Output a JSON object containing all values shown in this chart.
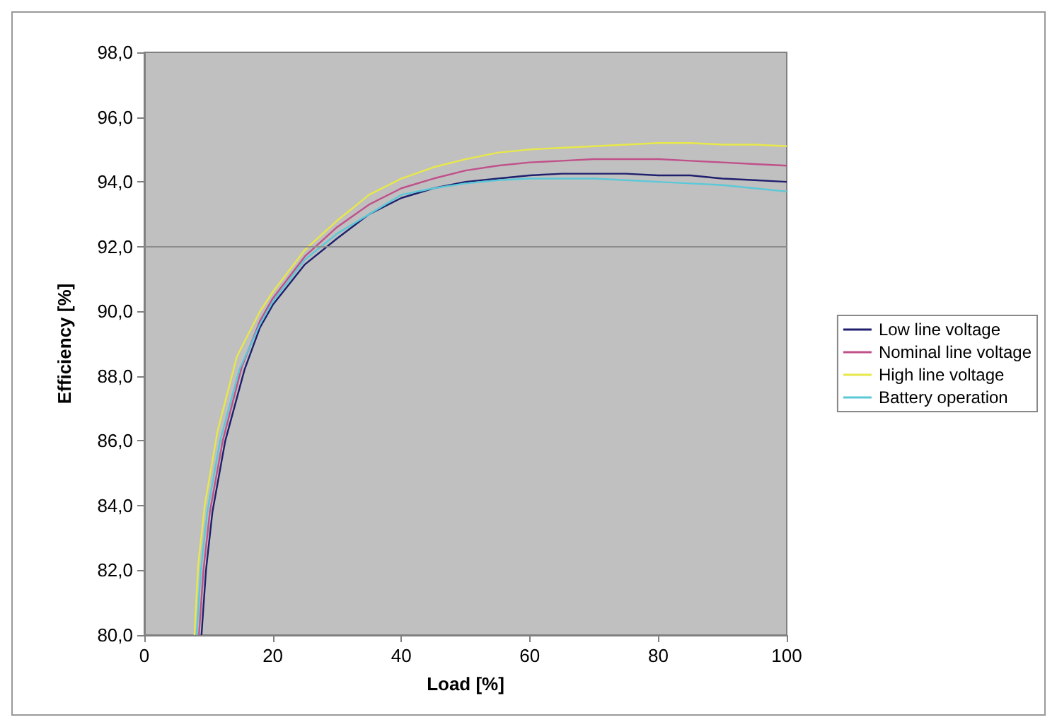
{
  "chart_data": {
    "type": "line",
    "xlabel": "Load [%]",
    "ylabel": "Efficiency [%]",
    "xlim": [
      0,
      100
    ],
    "xticks": [
      0,
      20,
      40,
      60,
      80,
      100
    ],
    "ylim": [
      80,
      98
    ],
    "yticks": [
      {
        "value": 80,
        "label": "80,0"
      },
      {
        "value": 82,
        "label": "82,0"
      },
      {
        "value": 84,
        "label": "84,0"
      },
      {
        "value": 86,
        "label": "86,0"
      },
      {
        "value": 88,
        "label": "88,0"
      },
      {
        "value": 90,
        "label": "90,0"
      },
      {
        "value": 92,
        "label": "92,0"
      },
      {
        "value": 94,
        "label": "94,0"
      },
      {
        "value": 96,
        "label": "96,0"
      },
      {
        "value": 98,
        "label": "98,0"
      }
    ],
    "series": [
      {
        "name": "Low line voltage",
        "color": "#1f1f6e",
        "x": [
          8.9,
          9.6,
          10.6,
          12.6,
          15.6,
          18,
          20,
          25,
          30,
          35,
          40,
          45,
          50,
          55,
          60,
          65,
          70,
          75,
          80,
          85,
          90,
          95,
          100
        ],
        "values": [
          80,
          82,
          83.8,
          86,
          88.2,
          89.5,
          90.2,
          91.45,
          92.25,
          93,
          93.5,
          93.8,
          94,
          94.1,
          94.2,
          94.25,
          94.25,
          94.25,
          94.2,
          94.2,
          94.1,
          94.05,
          94
        ]
      },
      {
        "name": "Nominal line voltage",
        "color": "#c0508a",
        "x": [
          8.5,
          9.2,
          10.2,
          12.2,
          15.2,
          18,
          20,
          25,
          30,
          35,
          40,
          45,
          50,
          55,
          60,
          65,
          70,
          75,
          80,
          85,
          90,
          95,
          100
        ],
        "values": [
          80,
          82,
          83.8,
          86,
          88.3,
          89.7,
          90.4,
          91.7,
          92.6,
          93.3,
          93.8,
          94.1,
          94.35,
          94.5,
          94.6,
          94.65,
          94.7,
          94.7,
          94.7,
          94.65,
          94.6,
          94.55,
          94.5
        ]
      },
      {
        "name": "High line voltage",
        "color": "#e8e84a",
        "x": [
          7.8,
          8.4,
          9.4,
          11.4,
          14.4,
          18,
          20,
          25,
          30,
          35,
          40,
          45,
          50,
          55,
          60,
          65,
          70,
          75,
          80,
          85,
          90,
          95,
          100
        ],
        "values": [
          80,
          82.2,
          84,
          86.3,
          88.6,
          90,
          90.6,
          91.9,
          92.8,
          93.6,
          94.1,
          94.45,
          94.7,
          94.9,
          95,
          95.05,
          95.1,
          95.15,
          95.2,
          95.2,
          95.15,
          95.15,
          95.1
        ]
      },
      {
        "name": "Battery operation",
        "color": "#5bc8d8",
        "x": [
          8.15,
          8.8,
          9.8,
          11.8,
          14.8,
          18,
          20,
          25,
          30,
          35,
          40,
          45,
          50,
          55,
          60,
          65,
          70,
          75,
          80,
          85,
          90,
          95,
          100
        ],
        "values": [
          80,
          82,
          83.8,
          86,
          88.2,
          89.6,
          90.3,
          91.6,
          92.4,
          93,
          93.6,
          93.8,
          93.95,
          94.05,
          94.1,
          94.1,
          94.1,
          94.05,
          94,
          93.95,
          93.9,
          93.8,
          93.7
        ]
      }
    ],
    "ref_lines": [
      {
        "axis": "y",
        "value": 92,
        "color": "#8c8c8c"
      }
    ],
    "legend": "right",
    "grid": false,
    "marker": "none",
    "line_style": "solid"
  }
}
